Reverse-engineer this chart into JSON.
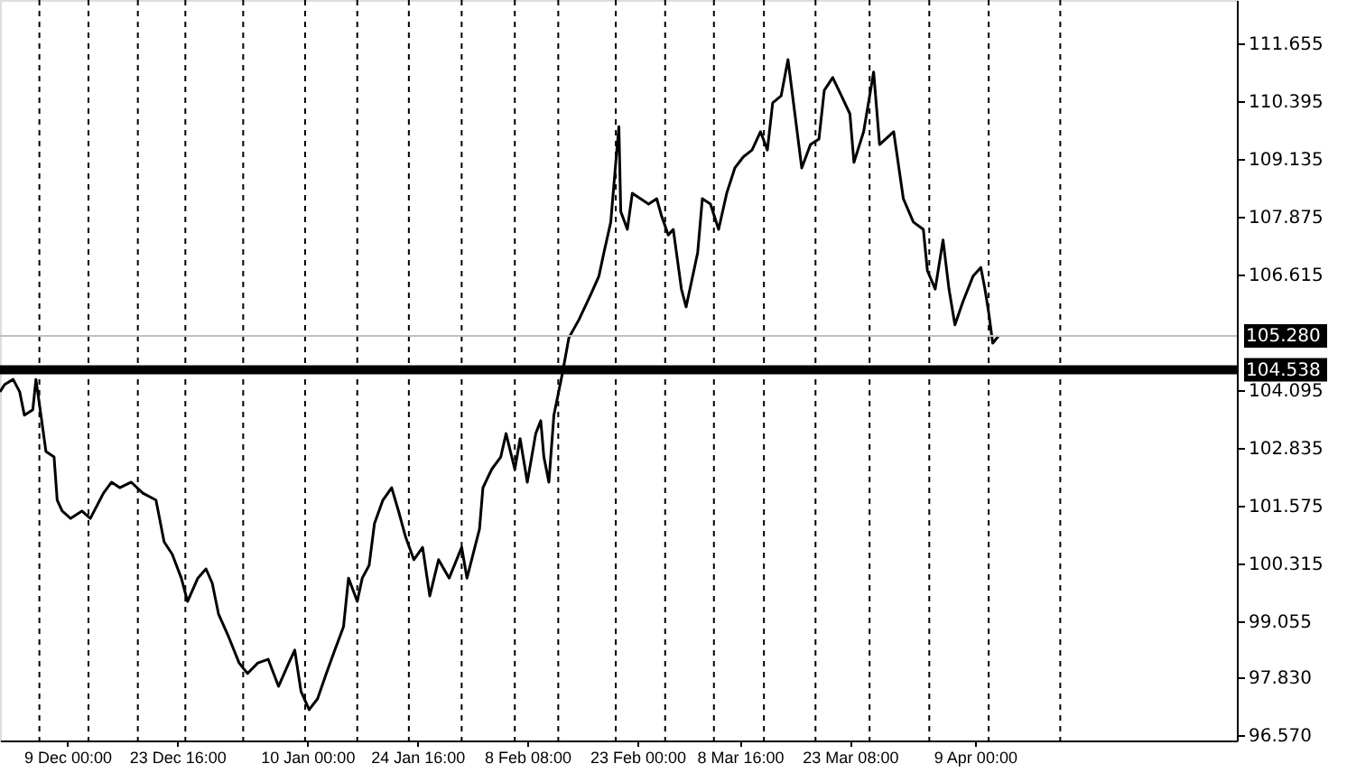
{
  "chart_data": {
    "type": "line",
    "x": [
      "2000-11-30T01:00",
      "2000-11-30T16:00",
      "2000-12-01T19:00",
      "2000-12-02T16:00",
      "2000-12-03T07:00",
      "2000-12-04T10:00",
      "2000-12-04T20:00",
      "2000-12-05T12:00",
      "2000-12-06T04:00",
      "2000-12-07T06:00",
      "2000-12-07T16:00",
      "2000-12-08T08:00",
      "2000-12-09T11:00",
      "2000-12-10T23:00",
      "2000-12-12T02:00",
      "2000-12-13T20:00",
      "2000-12-14T22:00",
      "2000-12-16T00:00",
      "2000-12-17T13:00",
      "2000-12-19T02:00",
      "2000-12-20T20:00",
      "2000-12-21T22:00",
      "2000-12-23T00:00",
      "2000-12-24T05:00",
      "2000-12-25T01:00",
      "2000-12-26T10:00",
      "2000-12-27T12:00",
      "2000-12-28T08:00",
      "2000-12-29T04:00",
      "2000-12-30T13:00",
      "2000-12-31T22:00",
      "2001-01-02T01:00",
      "2001-01-03T10:00",
      "2001-01-04T19:00",
      "2001-01-06T04:00",
      "2001-01-07T13:00",
      "2001-01-08T08:00",
      "2001-01-09T04:00",
      "2001-01-10T06:00",
      "2001-01-11T09:00",
      "2001-01-12T13:00",
      "2001-01-13T16:00",
      "2001-01-14T20:00",
      "2001-01-15T12:00",
      "2001-01-16T16:00",
      "2001-01-17T08:00",
      "2001-01-18T06:00",
      "2001-01-18T23:00",
      "2001-01-20T02:00",
      "2001-01-21T06:00",
      "2001-01-22T04:00",
      "2001-01-23T02:00",
      "2001-01-24T05:00",
      "2001-01-25T09:00",
      "2001-01-26T08:00",
      "2001-01-27T12:00",
      "2001-01-28T22:00",
      "2001-01-30T14:00",
      "2001-01-31T07:00",
      "2001-02-01T23:00",
      "2001-02-02T10:00",
      "2001-02-03T14:00",
      "2001-02-04T19:00",
      "2001-02-05T12:00",
      "2001-02-06T16:00",
      "2001-02-07T09:00",
      "2001-02-08T08:00",
      "2001-02-09T11:00",
      "2001-02-10T03:00",
      "2001-02-10T13:00",
      "2001-02-11T05:00",
      "2001-02-11T21:00",
      "2001-02-13T00:00",
      "2001-02-13T21:00",
      "2001-02-15T05:00",
      "2001-02-16T19:00",
      "2001-02-17T21:00",
      "2001-02-18T13:00",
      "2001-02-19T11:00",
      "2001-02-20T03:00",
      "2001-02-20T13:00",
      "2001-02-20T19:00",
      "2001-02-21T16:00",
      "2001-02-22T08:00",
      "2001-02-23T10:00",
      "2001-02-24T12:00",
      "2001-02-25T14:00",
      "2001-02-26T06:00",
      "2001-02-27T03:00",
      "2001-02-27T19:00",
      "2001-02-28T21:00",
      "2001-03-01T12:00",
      "2001-03-02T09:00",
      "2001-03-03T01:00",
      "2001-03-03T16:00",
      "2001-03-04T18:00",
      "2001-03-05T20:00",
      "2001-03-06T22:00",
      "2001-03-08T00:00",
      "2001-03-09T03:00",
      "2001-03-10T07:00",
      "2001-03-11T10:00",
      "2001-03-12T08:00",
      "2001-03-13T01:00",
      "2001-03-14T04:00",
      "2001-03-15T02:00",
      "2001-03-16T00:00",
      "2001-03-16T22:00",
      "2001-03-18T02:00",
      "2001-03-19T05:00",
      "2001-03-19T22:00",
      "2001-03-21T01:00",
      "2001-03-22T05:00",
      "2001-03-23T08:00",
      "2001-03-23T21:00",
      "2001-03-25T04:00",
      "2001-03-26T12:00",
      "2001-03-27T07:00",
      "2001-03-29T04:00",
      "2001-03-30T11:00",
      "2001-03-31T19:00",
      "2001-04-02T03:00",
      "2001-04-02T16:00",
      "2001-04-03T17:00",
      "2001-04-04T18:00",
      "2001-04-05T13:00",
      "2001-04-06T08:00",
      "2001-04-07T10:00",
      "2001-04-08T18:00",
      "2001-04-09T19:00",
      "2001-04-10T08:00",
      "2001-04-10T20:00",
      "2001-04-11T09:00",
      "2001-04-12T04:00"
    ],
    "values": [
      104.06,
      104.22,
      104.33,
      104.06,
      103.55,
      103.67,
      104.33,
      103.55,
      102.76,
      102.64,
      101.7,
      101.46,
      101.3,
      101.46,
      101.3,
      101.85,
      102.09,
      101.97,
      102.09,
      101.85,
      101.7,
      100.79,
      100.52,
      100.0,
      99.49,
      100.0,
      100.2,
      99.89,
      99.22,
      98.71,
      98.15,
      97.92,
      98.15,
      98.23,
      97.64,
      98.15,
      98.43,
      97.53,
      97.13,
      97.37,
      97.92,
      98.43,
      98.94,
      100.0,
      99.49,
      100.0,
      100.28,
      101.19,
      101.7,
      101.97,
      101.46,
      100.91,
      100.4,
      100.67,
      99.61,
      100.4,
      100.0,
      100.67,
      100.0,
      101.07,
      101.97,
      102.37,
      102.64,
      103.15,
      102.37,
      103.04,
      102.09,
      103.15,
      103.43,
      102.64,
      102.09,
      103.55,
      104.45,
      105.24,
      105.63,
      106.18,
      106.58,
      107.09,
      107.76,
      109.06,
      109.84,
      107.99,
      107.6,
      108.39,
      108.27,
      108.15,
      108.27,
      107.88,
      107.48,
      107.6,
      106.3,
      105.91,
      106.58,
      107.09,
      108.27,
      108.15,
      107.6,
      108.39,
      108.94,
      109.18,
      109.33,
      109.73,
      109.33,
      110.36,
      110.51,
      111.3,
      110.12,
      108.94,
      109.45,
      109.57,
      110.63,
      110.91,
      110.51,
      110.12,
      109.06,
      109.73,
      111.03,
      109.45,
      109.73,
      108.27,
      107.76,
      107.6,
      106.7,
      106.3,
      107.37,
      106.3,
      105.52,
      106.03,
      106.58,
      106.77,
      106.3,
      105.79,
      105.12,
      105.28
    ],
    "color": "#000000",
    "xlim": [
      "2000-11-30T01:00",
      "2001-05-13T22:00"
    ],
    "xticks": [
      {
        "value": "2000-12-09T00:00",
        "label": "9 Dec 00:00"
      },
      {
        "value": "2000-12-23T16:00",
        "label": "23 Dec 16:00"
      },
      {
        "value": "2001-01-10T00:00",
        "label": "10 Jan 00:00"
      },
      {
        "value": "2001-01-24T16:00",
        "label": "24 Jan 16:00"
      },
      {
        "value": "2001-02-08T08:00",
        "label": "8 Feb 08:00"
      },
      {
        "value": "2001-02-23T00:00",
        "label": "23 Feb 00:00"
      },
      {
        "value": "2001-03-08T16:00",
        "label": "8 Mar 16:00"
      },
      {
        "value": "2001-03-23T08:00",
        "label": "23 Mar 08:00"
      },
      {
        "value": "2001-04-09T00:00",
        "label": "9 Apr 00:00"
      }
    ],
    "ylim": [
      96.46,
      112.6
    ],
    "yticks": [
      {
        "value": 96.57,
        "label": "96.570"
      },
      {
        "value": 97.83,
        "label": "97.830"
      },
      {
        "value": 99.055,
        "label": "99.055"
      },
      {
        "value": 100.315,
        "label": "100.315"
      },
      {
        "value": 101.575,
        "label": "101.575"
      },
      {
        "value": 102.835,
        "label": "102.835"
      },
      {
        "value": 104.095,
        "label": "104.095"
      },
      {
        "value": 106.615,
        "label": "106.615"
      },
      {
        "value": 107.875,
        "label": "107.875"
      },
      {
        "value": 109.135,
        "label": "109.135"
      },
      {
        "value": 110.395,
        "label": "110.395"
      },
      {
        "value": 111.655,
        "label": "111.655"
      }
    ],
    "line_style": "solid",
    "ref_lines": [
      {
        "axis": "y",
        "value": 104.538,
        "label": "104.538",
        "color": "#000000",
        "line_style": "solid"
      },
      {
        "axis": "y",
        "value": 105.28,
        "label": "105.280",
        "color": "#c0c0c0",
        "line_style": "solid"
      },
      {
        "axis": "x",
        "value": "2000-12-05T07:00",
        "color": "#000000",
        "line_style": "dashed"
      },
      {
        "axis": "x",
        "value": "2000-12-11T20:00",
        "color": "#000000",
        "line_style": "dashed"
      },
      {
        "axis": "x",
        "value": "2000-12-18T10:00",
        "color": "#000000",
        "line_style": "dashed"
      },
      {
        "axis": "x",
        "value": "2000-12-24T18:00",
        "color": "#000000",
        "line_style": "dashed"
      },
      {
        "axis": "x",
        "value": "2001-01-01T11:00",
        "color": "#000000",
        "line_style": "dashed"
      },
      {
        "axis": "x",
        "value": "2001-01-09T17:00",
        "color": "#000000",
        "line_style": "dashed"
      },
      {
        "axis": "x",
        "value": "2001-01-16T16:00",
        "color": "#000000",
        "line_style": "dashed"
      },
      {
        "axis": "x",
        "value": "2001-01-23T13:00",
        "color": "#000000",
        "line_style": "dashed"
      },
      {
        "axis": "x",
        "value": "2001-01-30T14:00",
        "color": "#000000",
        "line_style": "dashed"
      },
      {
        "axis": "x",
        "value": "2001-02-06T16:00",
        "color": "#000000",
        "line_style": "dashed"
      },
      {
        "axis": "x",
        "value": "2001-02-12T11:00",
        "color": "#000000",
        "line_style": "dashed"
      },
      {
        "axis": "x",
        "value": "2001-02-20T03:00",
        "color": "#000000",
        "line_style": "dashed"
      },
      {
        "axis": "x",
        "value": "2001-02-26T17:00",
        "color": "#000000",
        "line_style": "dashed"
      },
      {
        "axis": "x",
        "value": "2001-03-05T05:00",
        "color": "#000000",
        "line_style": "dashed"
      },
      {
        "axis": "x",
        "value": "2001-03-11T21:00",
        "color": "#000000",
        "line_style": "dashed"
      },
      {
        "axis": "x",
        "value": "2001-03-18T18:00",
        "color": "#000000",
        "line_style": "dashed"
      },
      {
        "axis": "x",
        "value": "2001-03-25T23:00",
        "color": "#000000",
        "line_style": "dashed"
      },
      {
        "axis": "x",
        "value": "2001-04-02T22:00",
        "color": "#000000",
        "line_style": "dashed"
      },
      {
        "axis": "x",
        "value": "2001-04-10T20:00",
        "color": "#000000",
        "line_style": "dashed"
      },
      {
        "axis": "x",
        "value": "2001-04-20T09:00",
        "color": "#000000",
        "line_style": "dashed"
      }
    ]
  }
}
